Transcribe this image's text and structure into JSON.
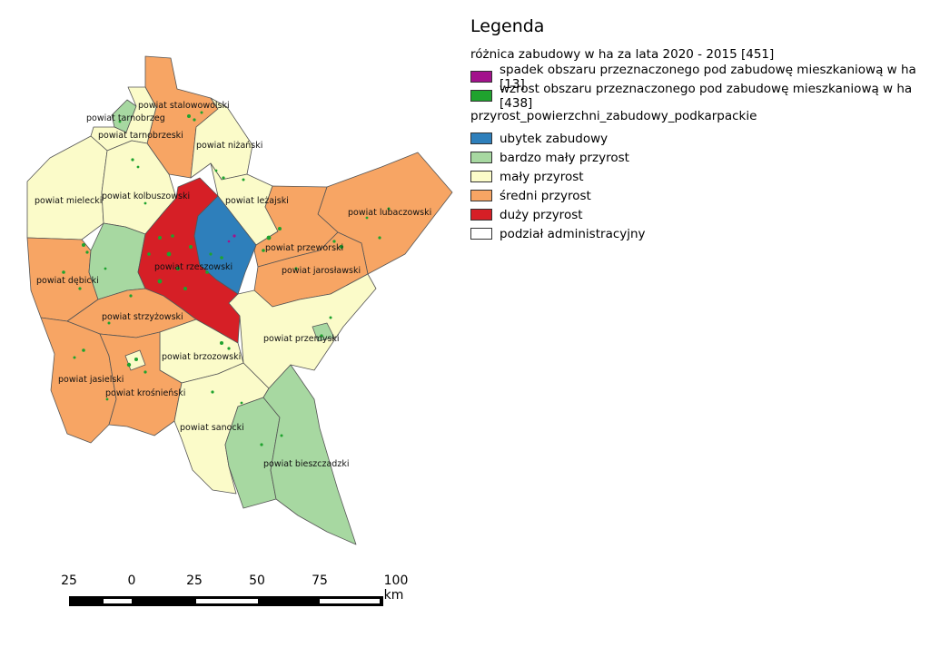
{
  "legend": {
    "title": "Legenda",
    "group1_title": "różnica zabudowy w ha za lata 2020 - 2015 [451]",
    "group1_items": [
      {
        "label": "spadek obszaru przeznaczonego pod zabudowę mieszkaniową w ha [13]",
        "color": "#a3128c"
      },
      {
        "label": "wzrost obszaru przeznaczonego pod zabudowę mieszkaniową w ha [438]",
        "color": "#1fa32e"
      }
    ],
    "group2_title": "przyrost_powierzchni_zabudowy_podkarpackie",
    "group2_items": [
      {
        "label": "ubytek zabudowy",
        "color": "#2e7fbb"
      },
      {
        "label": "bardzo mały przyrost",
        "color": "#a7d8a1"
      },
      {
        "label": "mały przyrost",
        "color": "#fbfbc9"
      },
      {
        "label": "średni przyrost",
        "color": "#f7a564"
      },
      {
        "label": "duży przyrost",
        "color": "#d61f26"
      },
      {
        "label": "podział administracyjny",
        "color": "#ffffff"
      }
    ]
  },
  "districts": [
    {
      "label": "powiat stalowowolski",
      "category": "średni przyrost"
    },
    {
      "label": "powiat tarnobrzeg",
      "category": "bardzo mały przyrost"
    },
    {
      "label": "powiat tarnobrzeski",
      "category": "mały przyrost"
    },
    {
      "label": "powiat niżański",
      "category": "mały przyrost"
    },
    {
      "label": "powiat mielecki",
      "category": "mały przyrost"
    },
    {
      "label": "powiat kolbuszowski",
      "category": "mały przyrost"
    },
    {
      "label": "powiat leżajski",
      "category": "mały przyrost"
    },
    {
      "label": "powiat lubaczowski",
      "category": "średni przyrost"
    },
    {
      "label": "powiat przeworski",
      "category": "średni przyrost"
    },
    {
      "label": "powiat rzeszowski",
      "category": "duży przyrost"
    },
    {
      "label": "powiat jarosławski",
      "category": "średni przyrost"
    },
    {
      "label": "powiat dębicki",
      "category": "średni przyrost"
    },
    {
      "label": "powiat strzyżowski",
      "category": "średni przyrost"
    },
    {
      "label": "powiat przemyski",
      "category": "mały przyrost"
    },
    {
      "label": "powiat brzozowski",
      "category": "mały przyrost"
    },
    {
      "label": "powiat jasielski",
      "category": "średni przyrost"
    },
    {
      "label": "powiat krośnieński",
      "category": "średni przyrost"
    },
    {
      "label": "powiat sanocki",
      "category": "mały przyrost"
    },
    {
      "label": "powiat bieszczadzki",
      "category": "bardzo mały przyrost"
    }
  ],
  "scalebar": {
    "labels": [
      "25",
      "0",
      "25",
      "50",
      "75",
      "100 km"
    ]
  }
}
